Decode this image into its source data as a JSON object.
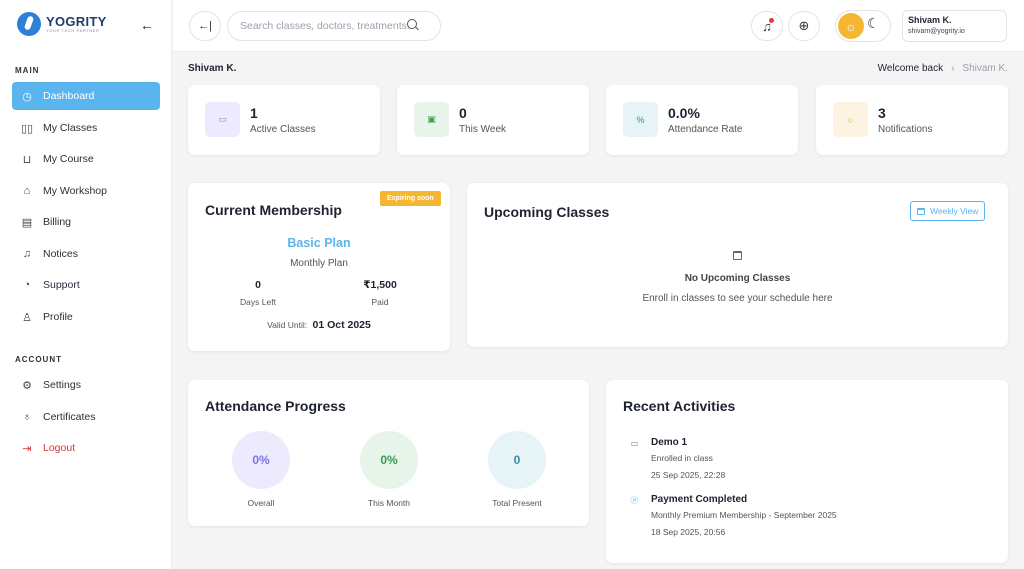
{
  "brand": {
    "name": "YOGRITY",
    "tagline": "YOUR TECH PARTNER"
  },
  "sidebar": {
    "main_label": "MAIN",
    "account_label": "ACCOUNT",
    "main_items": [
      {
        "label": "Dashboard",
        "icon": "dashboard-icon",
        "active": true
      },
      {
        "label": "My Classes",
        "icon": "book-open-icon"
      },
      {
        "label": "My Course",
        "icon": "cart-icon"
      },
      {
        "label": "My Workshop",
        "icon": "workshop-icon"
      },
      {
        "label": "Billing",
        "icon": "receipt-icon"
      },
      {
        "label": "Notices",
        "icon": "bell-icon"
      },
      {
        "label": "Support",
        "icon": "headset-icon"
      },
      {
        "label": "Profile",
        "icon": "user-icon"
      }
    ],
    "account_items": [
      {
        "label": "Settings",
        "icon": "gear-icon"
      },
      {
        "label": "Certificates",
        "icon": "award-icon"
      },
      {
        "label": "Logout",
        "icon": "logout-icon"
      }
    ]
  },
  "header": {
    "search_placeholder": "Search classes, doctors, treatments...",
    "user_name": "Shivam K.",
    "user_email": "shivam@yogrity.io"
  },
  "page": {
    "user_heading": "Shivam K.",
    "breadcrumb": [
      "Welcome back",
      "Shivam K."
    ]
  },
  "stats": [
    {
      "value": "1",
      "label": "Active Classes",
      "icon": "book-icon",
      "color": "#eceafc"
    },
    {
      "value": "0",
      "label": "This Week",
      "icon": "calendar-icon",
      "color": "#e6f4e9"
    },
    {
      "value": "0.0%",
      "label": "Attendance Rate",
      "icon": "percent-icon",
      "color": "#e6f3f7"
    },
    {
      "value": "3",
      "label": "Notifications",
      "icon": "alert-icon",
      "color": "#fdf3e2"
    }
  ],
  "membership": {
    "title": "Current Membership",
    "badge": "Expiring soon",
    "plan": "Basic Plan",
    "period": "Monthly Plan",
    "days_left": "0",
    "days_left_label": "Days Left",
    "paid": "₹1,500",
    "paid_label": "Paid",
    "valid_label": "Valid Until:",
    "valid_date": "01 Oct 2025"
  },
  "upcoming": {
    "title": "Upcoming Classes",
    "button": "Weekly View",
    "empty_title": "No Upcoming Classes",
    "empty_sub": "Enroll in classes to see your schedule here"
  },
  "attendance": {
    "title": "Attendance Progress",
    "items": [
      {
        "value": "0%",
        "label": "Overall"
      },
      {
        "value": "0%",
        "label": "This Month"
      },
      {
        "value": "0",
        "label": "Total Present"
      }
    ]
  },
  "activities": {
    "title": "Recent Activities",
    "items": [
      {
        "title": "Demo 1",
        "desc": "Enrolled in class",
        "time": "25 Sep 2025, 22:28",
        "icon": "book-icon"
      },
      {
        "title": "Payment Completed",
        "desc": "Monthly Premium Membership - September 2025",
        "time": "18 Sep 2025, 20:56",
        "icon": "payment-icon"
      }
    ]
  },
  "colors": {
    "accent": "#5ab4ee",
    "warning": "#f5b731",
    "danger": "#d23a3a"
  }
}
